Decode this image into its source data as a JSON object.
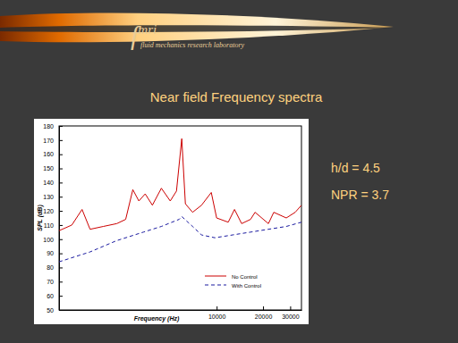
{
  "header": {
    "logo": "fmri",
    "tagline": "fluid mechanics research laboratory"
  },
  "slide_title": "Near field Frequency spectra",
  "notes": [
    "h/d = 4.5",
    "NPR = 3.7"
  ],
  "chart_data": {
    "type": "line",
    "log": "x",
    "x_label": "Frequency (Hz)",
    "y_label": "SPL (dB)",
    "xlim": [
      950,
      35500
    ],
    "xticks": [
      10000,
      20000,
      30000
    ],
    "ylim": [
      50,
      180
    ],
    "yticks": [
      50,
      60,
      70,
      80,
      90,
      100,
      110,
      120,
      130,
      140,
      150,
      160,
      170,
      180
    ],
    "legend": "lower right",
    "series": [
      {
        "name": "No Control",
        "color": "#cc0000",
        "line_style": "solid",
        "x": [
          950,
          1150,
          1340,
          1510,
          1840,
          2250,
          2570,
          2860,
          3130,
          3440,
          3830,
          4380,
          5000,
          5490,
          5940,
          6270,
          6980,
          7980,
          9230,
          10000,
          11890,
          13060,
          14530,
          16600,
          17750,
          21670,
          23480,
          28300,
          32330,
          35500
        ],
        "values": [
          106,
          110,
          121,
          107,
          109,
          111,
          114,
          135,
          127,
          132,
          124,
          136,
          127,
          134,
          171,
          125,
          119,
          124,
          133,
          115,
          112,
          121,
          111,
          114,
          119,
          111,
          119,
          115,
          119,
          124
        ]
      },
      {
        "name": "With Control",
        "color": "#1a1aa0",
        "line_style": "dashed",
        "x": [
          950,
          1510,
          2250,
          3350,
          4380,
          5710,
          5940,
          6980,
          7980,
          9740,
          12710,
          16600,
          21670,
          28300,
          35500
        ],
        "values": [
          84,
          91,
          99,
          105,
          109,
          114,
          116,
          109,
          103,
          101,
          103,
          105,
          107,
          109,
          112
        ]
      }
    ]
  }
}
